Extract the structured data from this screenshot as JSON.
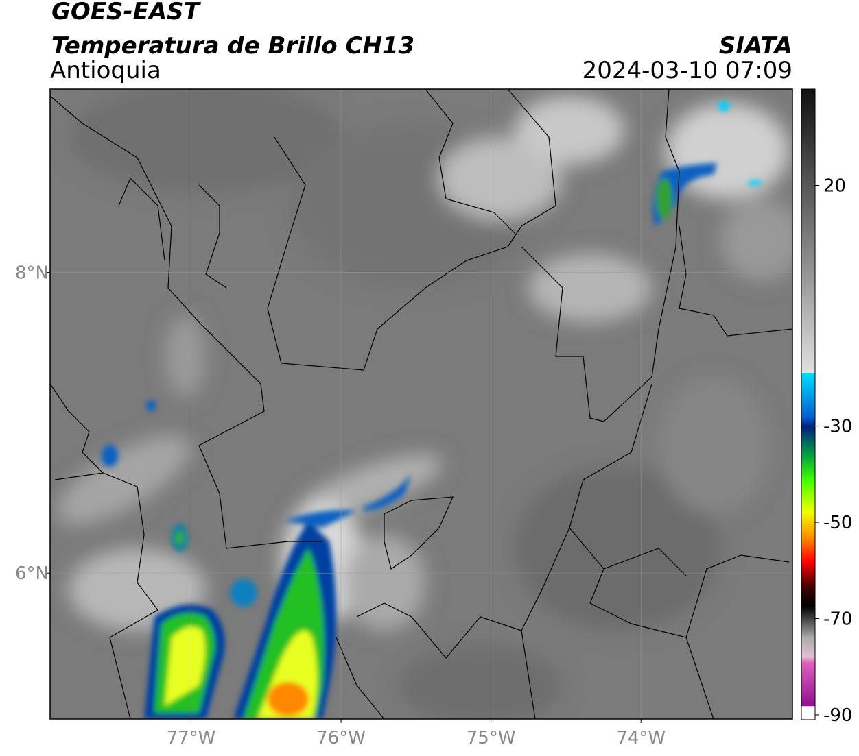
{
  "header": {
    "title": "GOES-EAST",
    "subtitle": "Temperatura de Brillo CH13",
    "region": "Antioquia",
    "source": "SIATA",
    "datetime": "2024-03-10 07:09"
  },
  "map": {
    "xlim": [
      -77.94,
      -72.99
    ],
    "ylim": [
      5.03,
      9.22
    ],
    "xticks": [
      {
        "value": -77,
        "label": "77°W"
      },
      {
        "value": -76,
        "label": "76°W"
      },
      {
        "value": -75,
        "label": "75°W"
      },
      {
        "value": -74,
        "label": "74°W"
      }
    ],
    "yticks": [
      {
        "value": 8,
        "label": "8°N"
      },
      {
        "value": 6,
        "label": "6°N"
      }
    ]
  },
  "colorbar": {
    "lim": [
      -91,
      40
    ],
    "ticks": [
      20,
      -30,
      -50,
      -70,
      -90
    ]
  }
}
